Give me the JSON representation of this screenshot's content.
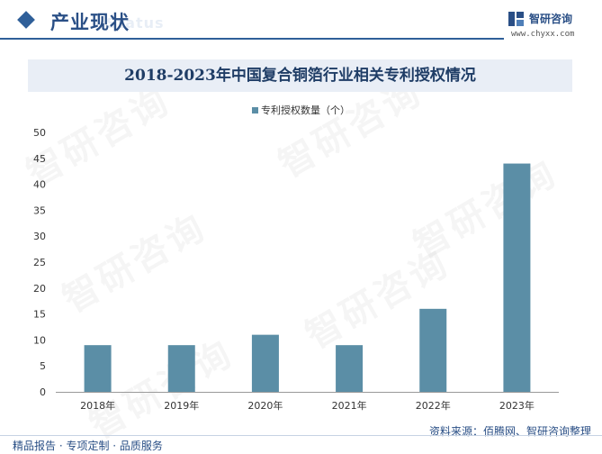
{
  "header": {
    "section_title": "产业现状",
    "section_ghost": "Status",
    "brand_name": "智研咨询",
    "brand_url": "www.chyxx.com"
  },
  "watermark_text": "智研咨询",
  "chart_data": {
    "type": "bar",
    "title": "2018-2023年中国复合铜箔行业相关专利授权情况",
    "xlabel": "",
    "ylabel": "",
    "categories": [
      "2018年",
      "2019年",
      "2020年",
      "2021年",
      "2022年",
      "2023年"
    ],
    "series": [
      {
        "name": "专利授权数量（个）",
        "values": [
          9,
          9,
          11,
          9,
          16,
          44
        ]
      }
    ],
    "ylim": [
      0,
      50
    ],
    "yticks": [
      0,
      5,
      10,
      15,
      20,
      25,
      30,
      35,
      40,
      45,
      50
    ],
    "grid": false,
    "legend_position": "top-center",
    "bar_color": "#5b8ea6"
  },
  "footer": {
    "source": "资料来源：佰腾网、智研咨询整理",
    "tagline": "精品报告 · 专项定制 · 品质服务"
  }
}
